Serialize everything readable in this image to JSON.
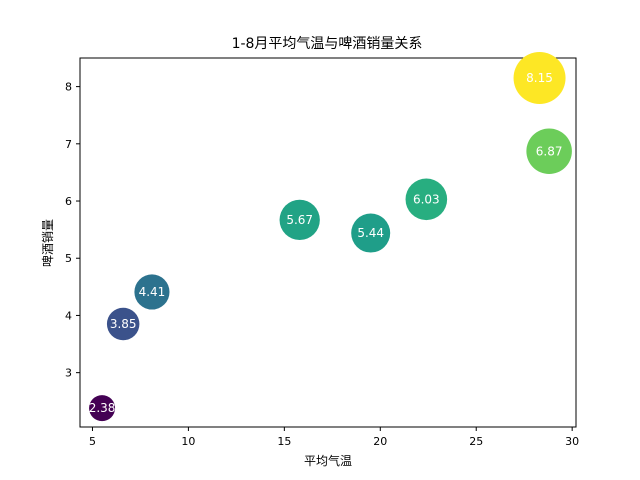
{
  "chart_data": {
    "type": "scatter",
    "title": "1-8月平均气温与啤酒销量关系",
    "xlabel": "平均气温",
    "ylabel": "啤酒销量",
    "xlim": [
      4.35,
      30.2
    ],
    "ylim": [
      2.05,
      8.5
    ],
    "xticks": [
      5,
      10,
      15,
      20,
      25,
      30
    ],
    "yticks": [
      3,
      4,
      5,
      6,
      7,
      8
    ],
    "grid": false,
    "colormap": "viridis",
    "points": [
      {
        "x": 5.5,
        "y": 2.38,
        "label": "2.38",
        "size": 0.0,
        "color": "#440154"
      },
      {
        "x": 6.6,
        "y": 3.85,
        "label": "3.85",
        "size": 0.25,
        "color": "#3b528b"
      },
      {
        "x": 8.1,
        "y": 4.41,
        "label": "4.41",
        "size": 0.35,
        "color": "#2c728e"
      },
      {
        "x": 15.8,
        "y": 5.67,
        "label": "5.67",
        "size": 0.55,
        "color": "#21a385"
      },
      {
        "x": 19.5,
        "y": 5.44,
        "label": "5.44",
        "size": 0.5,
        "color": "#1f9e89"
      },
      {
        "x": 22.4,
        "y": 6.03,
        "label": "6.03",
        "size": 0.6,
        "color": "#28ae80"
      },
      {
        "x": 28.8,
        "y": 6.87,
        "label": "6.87",
        "size": 0.75,
        "color": "#6ccd5a"
      },
      {
        "x": 28.3,
        "y": 8.15,
        "label": "8.15",
        "size": 1.0,
        "color": "#fde725"
      }
    ]
  }
}
